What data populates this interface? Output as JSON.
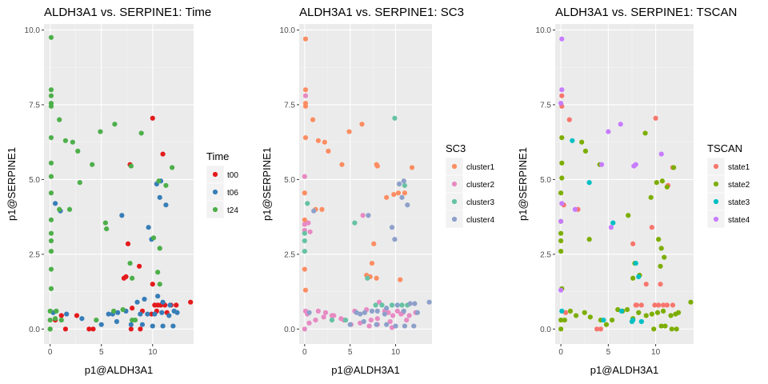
{
  "chart_data": [
    {
      "type": "scatter",
      "title": "ALDH3A1 vs. SERPINE1: Time",
      "xlabel": "p1@ALDH3A1",
      "ylabel": "p1@SERPINE1",
      "xlim": [
        -0.6,
        14
      ],
      "ylim": [
        -0.5,
        10.2
      ],
      "xticks": [
        "0",
        "5",
        "10"
      ],
      "yticks": [
        "0.0",
        "2.5",
        "5.0",
        "7.5",
        "10.0"
      ],
      "grid": true,
      "legend": {
        "title": "Time",
        "position": "right"
      },
      "series": [
        {
          "name": "t00",
          "color": "#e41a1c",
          "x": [
            10.0,
            11.0,
            7.8,
            7.6,
            7.2,
            7.4,
            8.7,
            10.0,
            10.2,
            10.5,
            10.8,
            11.2,
            11.8,
            12.3,
            13.7,
            8.0,
            9.0,
            9.9,
            10.4,
            11.4,
            1.1,
            2.6,
            3.8,
            4.2,
            7.9,
            8.8,
            1.5,
            0.5
          ],
          "y": [
            7.05,
            5.85,
            5.5,
            2.85,
            1.7,
            1.75,
            2.1,
            1.5,
            0.8,
            0.8,
            0.8,
            0.8,
            0.8,
            0.8,
            0.9,
            0.7,
            0.6,
            0.5,
            0.6,
            0.55,
            0.45,
            0.45,
            0.0,
            0.0,
            0.0,
            0.0,
            0.0,
            0.3
          ]
        },
        {
          "name": "t06",
          "color": "#377eb8",
          "x": [
            0.5,
            1.0,
            7.0,
            9.6,
            10.4,
            10.8,
            11.3,
            10.7,
            9.9,
            8.5,
            9.2,
            10.5,
            11.0,
            11.7,
            12.1,
            6.1,
            5.7,
            6.6,
            7.4,
            8.8,
            9.5,
            10.2,
            10.9,
            11.6,
            12.4,
            0.3,
            1.6,
            3.1,
            5.0,
            6.5,
            7.9,
            9.0,
            10.0,
            11.0,
            12.0
          ],
          "y": [
            4.2,
            3.95,
            3.8,
            3.4,
            4.85,
            4.95,
            4.15,
            4.4,
            3.0,
            0.9,
            1.0,
            1.1,
            0.9,
            0.8,
            0.6,
            0.5,
            0.5,
            0.55,
            0.6,
            0.5,
            0.5,
            0.5,
            0.55,
            0.45,
            0.55,
            0.55,
            0.5,
            0.35,
            0.15,
            0.25,
            0.15,
            0.15,
            0.1,
            0.1,
            0.1
          ]
        },
        {
          "name": "t24",
          "color": "#4daf4a",
          "x": [
            0.1,
            0.1,
            0.1,
            0.1,
            0.1,
            0.1,
            0.1,
            0.1,
            0.1,
            0.1,
            0.1,
            0.1,
            0.1,
            0.1,
            0.1,
            0.0,
            0.0,
            0.0,
            0.0,
            0.9,
            1.5,
            2.2,
            2.7,
            0.9,
            1.9,
            2.9,
            4.1,
            4.9,
            6.3,
            8.9,
            10.6,
            11.3,
            11.9,
            7.9,
            10.1,
            10.7,
            5.4,
            5.5,
            7.8,
            10.7,
            8.0,
            10.5,
            8.3,
            0.6,
            1.1,
            0.5,
            4.5,
            7.1,
            6.2,
            8.0
          ],
          "y": [
            9.75,
            8.0,
            7.8,
            7.55,
            7.45,
            6.4,
            5.55,
            5.1,
            4.55,
            3.65,
            3.2,
            2.95,
            2.6,
            2.0,
            1.35,
            0.6,
            0.3,
            0.0,
            0.0,
            7.0,
            6.3,
            6.25,
            5.95,
            4.0,
            4.0,
            4.9,
            5.5,
            6.6,
            6.85,
            6.55,
            4.95,
            4.8,
            5.4,
            5.45,
            3.05,
            2.7,
            3.55,
            3.35,
            2.2,
            1.5,
            1.7,
            1.9,
            0.3,
            0.6,
            0.3,
            0.35,
            0.3,
            0.65,
            0.6,
            0.3
          ]
        }
      ]
    },
    {
      "type": "scatter",
      "title": "ALDH3A1 vs. SERPINE1: SC3",
      "xlabel": "p1@ALDH3A1",
      "ylabel": "p1@SERPINE1",
      "xlim": [
        -0.6,
        14
      ],
      "ylim": [
        -0.5,
        10.2
      ],
      "xticks": [
        "0",
        "5",
        "10"
      ],
      "yticks": [
        "0.0",
        "2.5",
        "5.0",
        "7.5",
        "10.0"
      ],
      "grid": true,
      "legend": {
        "title": "SC3",
        "position": "right"
      },
      "series": [
        {
          "name": "cluster1",
          "color": "#fc8d62",
          "x": [
            0.1,
            0.1,
            0.1,
            0.1,
            0.1,
            0.0,
            0.0,
            0.9,
            1.5,
            2.2,
            2.6,
            4.1,
            4.9,
            6.3,
            7.9,
            8.0,
            9.0,
            9.8,
            10.3,
            11.0,
            11.8,
            7.6,
            7.4,
            7.2,
            10.5,
            7.9,
            6.8,
            1.2,
            1.9,
            0.0,
            0.1
          ],
          "y": [
            8.0,
            7.55,
            7.45,
            6.4,
            9.7,
            4.55,
            3.65,
            7.0,
            6.3,
            6.25,
            5.95,
            5.5,
            6.6,
            6.85,
            5.5,
            5.45,
            4.4,
            4.5,
            4.55,
            4.55,
            5.4,
            2.85,
            2.2,
            1.75,
            1.65,
            1.7,
            1.8,
            4.0,
            4.0,
            2.0,
            1.3
          ]
        },
        {
          "name": "cluster2",
          "color": "#e78ac3",
          "x": [
            0.1,
            0.0,
            0.0,
            0.0,
            0.4,
            0.6,
            6.4,
            8.2,
            8.8,
            9.2,
            9.7,
            10.2,
            10.8,
            11.5,
            12.2,
            1.5,
            2.3,
            3.2,
            4.3,
            5.5,
            6.8,
            7.3,
            8.0,
            9.4,
            10.6,
            11.2,
            0.5,
            1.2,
            2.1,
            3.0,
            4.0,
            5.1,
            6.1,
            7.1,
            8.0,
            9.6,
            0.0,
            0.1,
            0.3
          ],
          "y": [
            7.8,
            5.1,
            3.3,
            3.5,
            3.55,
            3.25,
            3.8,
            0.9,
            0.6,
            0.55,
            0.45,
            0.6,
            0.55,
            0.45,
            0.55,
            0.6,
            0.55,
            0.45,
            0.3,
            0.6,
            0.65,
            0.3,
            0.35,
            0.25,
            0.5,
            0.3,
            0.2,
            0.3,
            0.4,
            0.45,
            0.35,
            0.15,
            0.2,
            0.1,
            0.15,
            0.05,
            0.0,
            0.6,
            0.5
          ]
        },
        {
          "name": "cluster3",
          "color": "#66c2a5",
          "x": [
            9.9,
            0.0,
            0.0,
            0.0,
            11.0,
            6.9,
            7.8,
            8.5,
            9.6,
            10.2,
            10.7,
            11.3,
            0.3,
            5.5,
            3.0,
            4.5
          ],
          "y": [
            7.05,
            2.6,
            2.95,
            3.2,
            4.8,
            1.7,
            0.8,
            0.8,
            0.8,
            0.8,
            0.8,
            0.8,
            4.2,
            3.55,
            0.3,
            0.3
          ]
        },
        {
          "name": "cluster4",
          "color": "#8da0cb",
          "x": [
            7.0,
            9.6,
            10.4,
            10.9,
            11.3,
            10.7,
            9.9,
            13.7,
            12.1,
            11.6,
            10.2,
            9.0,
            8.0,
            6.1,
            5.7,
            6.6,
            7.4,
            8.8,
            10.9,
            12.4,
            5.0,
            6.5,
            7.9,
            9.0,
            10.0,
            11.0,
            12.0,
            1.0,
            0.5
          ],
          "y": [
            3.8,
            3.4,
            4.85,
            4.95,
            4.15,
            4.4,
            3.0,
            0.9,
            0.85,
            0.85,
            0.8,
            0.7,
            0.6,
            0.5,
            0.55,
            0.55,
            0.6,
            0.5,
            0.6,
            0.55,
            0.15,
            0.25,
            0.15,
            0.15,
            0.1,
            0.1,
            0.1,
            3.95,
            0.55
          ]
        }
      ]
    },
    {
      "type": "scatter",
      "title": "ALDH3A1 vs. SERPINE1: TSCAN",
      "xlabel": "p1@ALDH3A1",
      "ylabel": "p1@SERPINE1",
      "xlim": [
        -0.6,
        14
      ],
      "ylim": [
        -0.5,
        10.2
      ],
      "xticks": [
        "0",
        "5",
        "10"
      ],
      "yticks": [
        "0.0",
        "2.5",
        "5.0",
        "7.5",
        "10.0"
      ],
      "grid": true,
      "legend": {
        "title": "TSCAN",
        "position": "right"
      },
      "series": [
        {
          "name": "state1",
          "color": "#f8766d",
          "x": [
            10.0,
            0.1,
            0.1,
            0.9,
            0.3,
            1.8,
            9.6,
            11.3,
            11.8,
            7.6,
            7.9,
            8.0,
            8.5,
            9.9,
            10.3,
            10.8,
            11.2,
            11.8,
            0.5,
            10.5,
            9.0,
            4.2,
            3.8
          ],
          "y": [
            7.05,
            7.8,
            7.45,
            7.0,
            4.15,
            4.0,
            3.4,
            4.8,
            5.4,
            2.85,
            0.8,
            0.8,
            0.8,
            0.8,
            0.8,
            0.8,
            0.8,
            0.8,
            0.55,
            1.5,
            1.5,
            0.0,
            0.0
          ]
        },
        {
          "name": "state2",
          "color": "#7cae00",
          "x": [
            0.1,
            0.1,
            0.1,
            0.0,
            0.0,
            0.0,
            0.0,
            0.0,
            0.1,
            2.2,
            2.6,
            3.0,
            4.1,
            8.9,
            9.5,
            10.1,
            10.7,
            11.2,
            11.9,
            10.3,
            10.6,
            10.9,
            10.5,
            7.1,
            7.6,
            7.8,
            8.3,
            13.7,
            12.4,
            12.1,
            11.6,
            10.8,
            10.2,
            9.6,
            9.0,
            8.2,
            7.6,
            7.0,
            6.5,
            6.0,
            5.4,
            4.8,
            4.2,
            3.1,
            2.5,
            1.6,
            1.0,
            0.4,
            0.0,
            0.0,
            9.8,
            10.6,
            11.0,
            11.7,
            12.2
          ],
          "y": [
            6.4,
            5.55,
            5.05,
            4.55,
            3.6,
            3.2,
            2.95,
            2.6,
            1.35,
            6.25,
            5.95,
            3.0,
            5.5,
            6.55,
            4.4,
            4.9,
            4.95,
            4.75,
            5.4,
            3.0,
            2.7,
            2.4,
            2.1,
            3.8,
            1.7,
            2.2,
            1.8,
            0.9,
            0.55,
            0.5,
            0.45,
            0.6,
            0.55,
            0.5,
            0.45,
            0.55,
            0.35,
            0.65,
            0.6,
            0.65,
            0.3,
            0.15,
            0.3,
            0.4,
            0.55,
            0.45,
            0.6,
            0.3,
            0.0,
            0.3,
            0.0,
            0.1,
            0.1,
            0.0,
            0.0
          ]
        },
        {
          "name": "state3",
          "color": "#00bfc4",
          "x": [
            1.2,
            3.0,
            5.5,
            7.9,
            8.2,
            7.6,
            0.1,
            4.5,
            7.5,
            8.5,
            6.4
          ],
          "y": [
            6.3,
            4.9,
            3.55,
            2.2,
            1.75,
            0.3,
            0.6,
            0.3,
            0.25,
            0.25,
            0.6
          ]
        },
        {
          "name": "state4",
          "color": "#c77cff",
          "x": [
            0.1,
            0.1,
            0.0,
            5.0,
            6.3,
            7.9,
            7.7,
            10.6,
            4.3,
            5.3,
            0.0,
            0.0,
            0.1,
            1.5
          ],
          "y": [
            9.7,
            8.0,
            7.55,
            6.6,
            6.85,
            5.5,
            5.45,
            5.85,
            5.5,
            3.4,
            3.6,
            1.3,
            4.2,
            4.0
          ]
        }
      ]
    }
  ]
}
